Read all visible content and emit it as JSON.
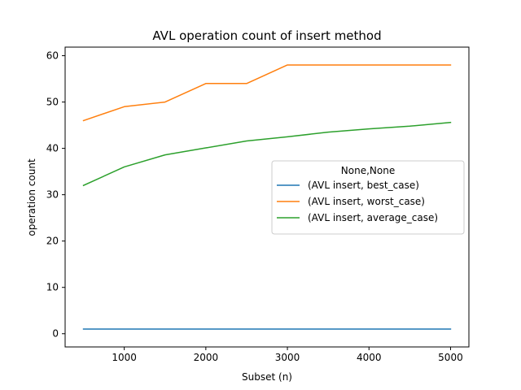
{
  "chart_data": {
    "type": "line",
    "title": "AVL operation count of insert method",
    "xlabel": "Subset (n)",
    "ylabel": "operation count",
    "x": [
      500,
      1000,
      1500,
      2000,
      2500,
      3000,
      3500,
      4000,
      4500,
      5000
    ],
    "xlim": [
      275,
      5225
    ],
    "ylim": [
      -2.85,
      61.85
    ],
    "xticks": [
      1000,
      2000,
      3000,
      4000,
      5000
    ],
    "yticks": [
      0,
      10,
      20,
      30,
      40,
      50,
      60
    ],
    "grid": false,
    "legend": {
      "title": "None,None",
      "placement": "center-right"
    },
    "series": [
      {
        "name": "(AVL insert, best_case)",
        "color": "#1f77b4",
        "values": [
          1,
          1,
          1,
          1,
          1,
          1,
          1,
          1,
          1,
          1
        ]
      },
      {
        "name": "(AVL insert, worst_case)",
        "color": "#ff7f0e",
        "values": [
          46,
          49,
          50,
          54,
          54,
          58,
          58,
          58,
          58,
          58
        ]
      },
      {
        "name": "(AVL insert, average_case)",
        "color": "#2ca02c",
        "values": [
          32.0,
          36.0,
          38.6,
          40.1,
          41.6,
          42.5,
          43.5,
          44.2,
          44.8,
          45.6
        ]
      }
    ]
  }
}
